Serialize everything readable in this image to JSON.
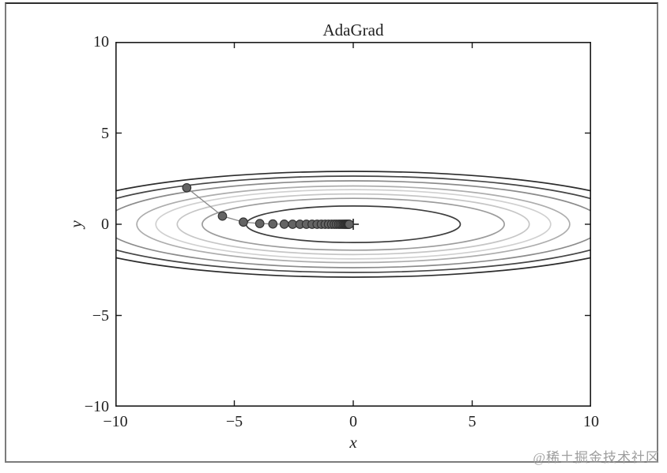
{
  "figure": {
    "watermark": "@稀土掘金技术社区"
  },
  "style": {
    "axis_color": "#1a1a1a",
    "tick_color": "#1a1a1a",
    "frame_color": "#7c7c7c",
    "watermark_color": "#9e9e9e",
    "background": "#ffffff"
  },
  "chart_data": {
    "type": "contour-trajectory",
    "title": "AdaGrad",
    "xlabel": "x",
    "ylabel": "y",
    "xlim": [
      -10,
      10
    ],
    "ylim": [
      -10,
      10
    ],
    "xticks": [
      -10,
      -5,
      0,
      5,
      10
    ],
    "yticks": [
      10,
      5,
      0,
      -5,
      -10
    ],
    "xtick_labels": [
      "−10",
      "−5",
      "0",
      "5",
      "10"
    ],
    "ytick_labels": [
      "10",
      "5",
      "0",
      "−5",
      "−10"
    ],
    "grid": false,
    "legend": null,
    "description": "Grayscale contour ellipses of an elongated quadratic bowl f(x,y) ≈ 0.1x² + 2y², with the AdaGrad optimization trajectory starting at (−7, 2) and converging along y = 0 toward the minimum marked with + at (0, 0).",
    "contour_levels": [
      {
        "x_half": 4.5,
        "y_half": 1.0,
        "color": "#3e3e3e"
      },
      {
        "x_half": 6.35,
        "y_half": 1.42,
        "color": "#9c9c9c"
      },
      {
        "x_half": 7.4,
        "y_half": 1.66,
        "color": "#c6c6c6"
      },
      {
        "x_half": 8.3,
        "y_half": 1.9,
        "color": "#d0d0d0"
      },
      {
        "x_half": 9.1,
        "y_half": 2.1,
        "color": "#adadad"
      },
      {
        "x_half": 10.5,
        "y_half": 2.38,
        "color": "#8b8b8b"
      },
      {
        "x_half": 11.8,
        "y_half": 2.64,
        "color": "#454545"
      },
      {
        "x_half": 12.9,
        "y_half": 2.9,
        "color": "#2c2c2c"
      }
    ],
    "trajectory": {
      "line_color": "#8a8a8a",
      "marker_color": "#646464",
      "marker_edge_color": "#2f2f2f",
      "points": [
        [
          -7.0,
          2.0
        ],
        [
          -5.5,
          0.45
        ],
        [
          -4.62,
          0.12
        ],
        [
          -3.93,
          0.04
        ],
        [
          -3.38,
          0.015
        ],
        [
          -2.9,
          0.005
        ],
        [
          -2.55,
          0.0
        ],
        [
          -2.24,
          0.0
        ],
        [
          -1.97,
          0.0
        ],
        [
          -1.73,
          0.0
        ],
        [
          -1.52,
          0.0
        ],
        [
          -1.34,
          0.0
        ],
        [
          -1.18,
          0.0
        ],
        [
          -1.04,
          0.0
        ],
        [
          -0.91,
          0.0
        ],
        [
          -0.8,
          0.0
        ],
        [
          -0.71,
          0.0
        ],
        [
          -0.62,
          0.0
        ],
        [
          -0.55,
          0.0
        ],
        [
          -0.48,
          0.0
        ],
        [
          -0.42,
          0.0
        ],
        [
          -0.37,
          0.0
        ],
        [
          -0.33,
          0.0
        ],
        [
          -0.29,
          0.0
        ],
        [
          -0.25,
          0.0
        ],
        [
          -0.22,
          0.0
        ],
        [
          -0.19,
          0.0
        ],
        [
          -0.17,
          0.0
        ]
      ]
    },
    "minimum_marker": {
      "x": 0,
      "y": 0,
      "symbol": "+",
      "color": "#111111"
    }
  }
}
